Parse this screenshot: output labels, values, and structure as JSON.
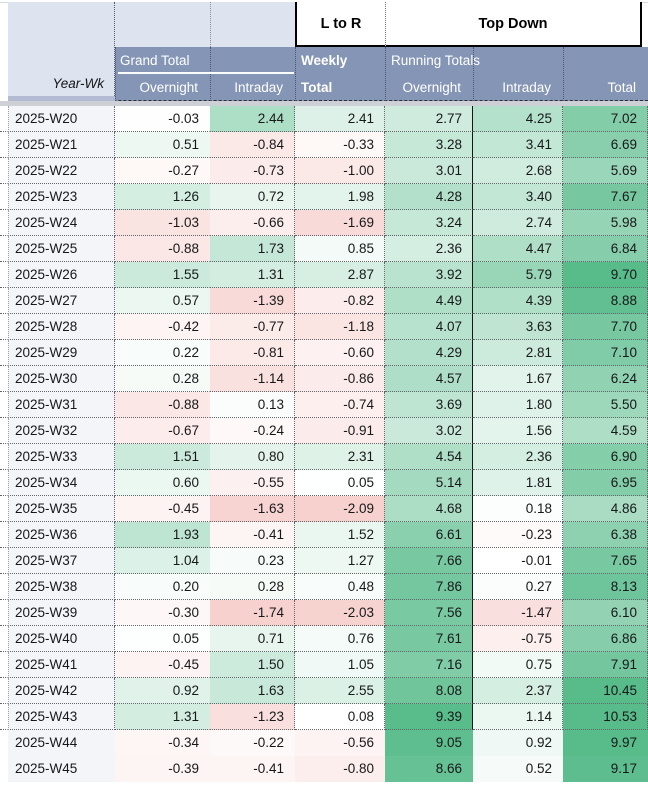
{
  "header": {
    "corner_label": "Year-Wk",
    "flow_left_label": "L to R",
    "flow_right_label": "Top Down",
    "grand_total_label": "Grand Total",
    "weekly_label": "Weekly",
    "weekly_total_label": "Total",
    "running_totals_label": "Running Totals",
    "sub_columns_left": [
      "Overnight",
      "Intraday"
    ],
    "sub_columns_right": [
      "Overnight",
      "Intraday",
      "Total"
    ]
  },
  "colors": {
    "band_blue": "#8595b6",
    "corner_light_blue": "#dde4f0",
    "corner_strip_blue": "#b2bbd2",
    "row_label_bg": "#f3f5f9",
    "divider_gray": "#cdd1d6"
  },
  "color_scale": {
    "positive_color": "#57bb8a",
    "negative_color": "#e67c73",
    "neutral_color": "#ffffff",
    "column_scales": [
      {
        "pos": 5,
        "neg": 5
      },
      {
        "pos": 5,
        "neg": 5
      },
      {
        "pos": 12,
        "neg": 6
      },
      {
        "pos": 9.5,
        "neg": 6
      },
      {
        "pos": 9.5,
        "neg": 6
      },
      {
        "pos": 9.5,
        "neg": 6
      }
    ]
  },
  "table": {
    "columns": [
      "Overnight",
      "Intraday",
      "Total",
      "Overnight",
      "Intraday",
      "Total"
    ],
    "borderless_weeks": [
      "2025-W44",
      "2025-W45"
    ],
    "rows": [
      {
        "week": "2025-W20",
        "values": [
          -0.03,
          2.44,
          2.41,
          2.77,
          4.25,
          7.02
        ]
      },
      {
        "week": "2025-W21",
        "values": [
          0.51,
          -0.84,
          -0.33,
          3.28,
          3.41,
          6.69
        ]
      },
      {
        "week": "2025-W22",
        "values": [
          -0.27,
          -0.73,
          -1.0,
          3.01,
          2.68,
          5.69
        ]
      },
      {
        "week": "2025-W23",
        "values": [
          1.26,
          0.72,
          1.98,
          4.28,
          3.4,
          7.67
        ]
      },
      {
        "week": "2025-W24",
        "values": [
          -1.03,
          -0.66,
          -1.69,
          3.24,
          2.74,
          5.98
        ]
      },
      {
        "week": "2025-W25",
        "values": [
          -0.88,
          1.73,
          0.85,
          2.36,
          4.47,
          6.84
        ]
      },
      {
        "week": "2025-W26",
        "values": [
          1.55,
          1.31,
          2.87,
          3.92,
          5.79,
          9.7
        ]
      },
      {
        "week": "2025-W27",
        "values": [
          0.57,
          -1.39,
          -0.82,
          4.49,
          4.39,
          8.88
        ]
      },
      {
        "week": "2025-W28",
        "values": [
          -0.42,
          -0.77,
          -1.18,
          4.07,
          3.63,
          7.7
        ]
      },
      {
        "week": "2025-W29",
        "values": [
          0.22,
          -0.81,
          -0.6,
          4.29,
          2.81,
          7.1
        ]
      },
      {
        "week": "2025-W30",
        "values": [
          0.28,
          -1.14,
          -0.86,
          4.57,
          1.67,
          6.24
        ]
      },
      {
        "week": "2025-W31",
        "values": [
          -0.88,
          0.13,
          -0.74,
          3.69,
          1.8,
          5.5
        ]
      },
      {
        "week": "2025-W32",
        "values": [
          -0.67,
          -0.24,
          -0.91,
          3.02,
          1.56,
          4.59
        ]
      },
      {
        "week": "2025-W33",
        "values": [
          1.51,
          0.8,
          2.31,
          4.54,
          2.36,
          6.9
        ]
      },
      {
        "week": "2025-W34",
        "values": [
          0.6,
          -0.55,
          0.05,
          5.14,
          1.81,
          6.95
        ]
      },
      {
        "week": "2025-W35",
        "values": [
          -0.45,
          -1.63,
          -2.09,
          4.68,
          0.18,
          4.86
        ]
      },
      {
        "week": "2025-W36",
        "values": [
          1.93,
          -0.41,
          1.52,
          6.61,
          -0.23,
          6.38
        ]
      },
      {
        "week": "2025-W37",
        "values": [
          1.04,
          0.23,
          1.27,
          7.66,
          -0.01,
          7.65
        ]
      },
      {
        "week": "2025-W38",
        "values": [
          0.2,
          0.28,
          0.48,
          7.86,
          0.27,
          8.13
        ]
      },
      {
        "week": "2025-W39",
        "values": [
          -0.3,
          -1.74,
          -2.03,
          7.56,
          -1.47,
          6.1
        ]
      },
      {
        "week": "2025-W40",
        "values": [
          0.05,
          0.71,
          0.76,
          7.61,
          -0.75,
          6.86
        ]
      },
      {
        "week": "2025-W41",
        "values": [
          -0.45,
          1.5,
          1.05,
          7.16,
          0.75,
          7.91
        ]
      },
      {
        "week": "2025-W42",
        "values": [
          0.92,
          1.63,
          2.55,
          8.08,
          2.37,
          10.45
        ]
      },
      {
        "week": "2025-W43",
        "values": [
          1.31,
          -1.23,
          0.08,
          9.39,
          1.14,
          10.53
        ]
      },
      {
        "week": "2025-W44",
        "values": [
          -0.34,
          -0.22,
          -0.56,
          9.05,
          0.92,
          9.97
        ]
      },
      {
        "week": "2025-W45",
        "values": [
          -0.39,
          -0.41,
          -0.8,
          8.66,
          0.52,
          9.17
        ]
      }
    ]
  }
}
